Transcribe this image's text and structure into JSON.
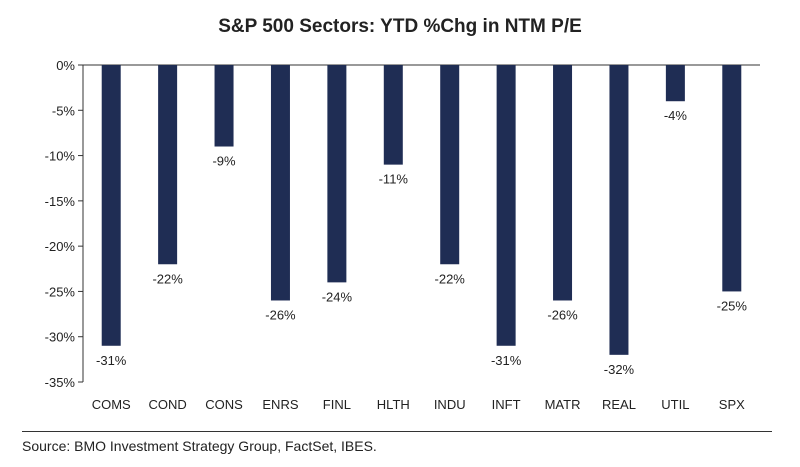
{
  "chart_data": {
    "type": "bar",
    "title": "S&P 500 Sectors: YTD %Chg in NTM P/E",
    "categories": [
      "COMS",
      "COND",
      "CONS",
      "ENRS",
      "FINL",
      "HLTH",
      "INDU",
      "INFT",
      "MATR",
      "REAL",
      "UTIL",
      "SPX"
    ],
    "values": [
      -31,
      -22,
      -9,
      -26,
      -24,
      -11,
      -22,
      -31,
      -26,
      -32,
      -4,
      -25
    ],
    "data_labels": [
      "-31%",
      "-22%",
      "-9%",
      "-26%",
      "-24%",
      "-11%",
      "-22%",
      "-31%",
      "-26%",
      "-32%",
      "-4%",
      "-25%"
    ],
    "ylim": [
      -35,
      0
    ],
    "yticks": [
      0,
      -5,
      -10,
      -15,
      -20,
      -25,
      -30,
      -35
    ],
    "ytick_labels": [
      "0%",
      "-5%",
      "-10%",
      "-15%",
      "-20%",
      "-25%",
      "-30%",
      "-35%"
    ],
    "xlabel": "",
    "ylabel": "",
    "grid": false,
    "bar_color": "#1f2d54"
  },
  "footer": {
    "source": "Source: BMO Investment Strategy Group, FactSet, IBES."
  }
}
